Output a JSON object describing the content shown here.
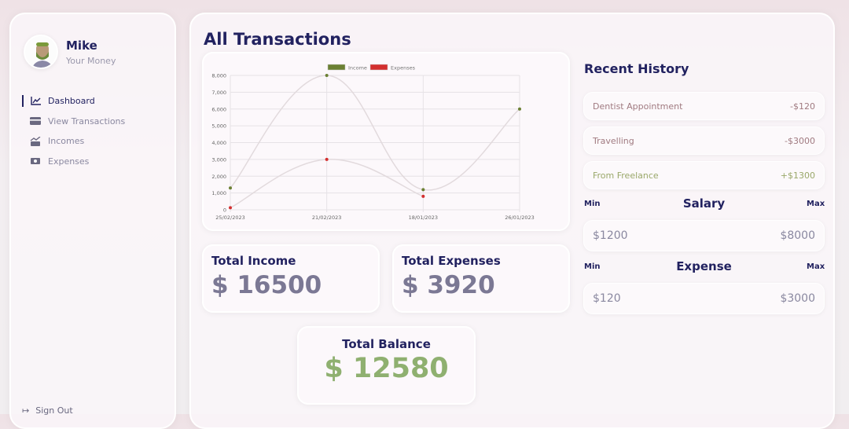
{
  "user": {
    "name": "Mike",
    "subtitle": "Your Money"
  },
  "nav": [
    {
      "label": "Dashboard",
      "icon": "chart-line-icon",
      "active": true
    },
    {
      "label": "View Transactions",
      "icon": "credit-card-icon"
    },
    {
      "label": "Incomes",
      "icon": "money-bill-trend-up-icon"
    },
    {
      "label": "Expenses",
      "icon": "money-bill-transfer-icon"
    }
  ],
  "signout": "Sign Out",
  "page_title": "All Transactions",
  "chart_data": {
    "type": "line",
    "categories": [
      "25/02/2023",
      "21/02/2023",
      "18/01/2023",
      "26/01/2023"
    ],
    "series": [
      {
        "name": "Income",
        "values": [
          1300,
          8000,
          1200,
          6000
        ],
        "color": "#6b8033"
      },
      {
        "name": "Expenses",
        "values": [
          120,
          3000,
          800,
          null
        ],
        "color": "#d32f2f"
      }
    ],
    "ylim": [
      0,
      8000
    ],
    "yticks": [
      "0",
      "1,000",
      "2,000",
      "3,000",
      "4,000",
      "5,000",
      "6,000",
      "7,000",
      "8,000"
    ],
    "grid": true,
    "legend": "top"
  },
  "stats": {
    "income_label": "Total Income",
    "income": "$ 16500",
    "expense_label": "Total Expenses",
    "expense": "$ 3920",
    "balance_label": "Total Balance",
    "balance": "$ 12580",
    "balance_color": "#8fb070"
  },
  "recent": {
    "title": "Recent History",
    "items": [
      {
        "name": "Dentist Appointment",
        "amount": "-$120",
        "color": "#a07a80"
      },
      {
        "name": "Travelling",
        "amount": "-$3000",
        "color": "#a07a80"
      },
      {
        "name": "From Freelance",
        "amount": "+$1300",
        "color": "#9aa86a"
      }
    ]
  },
  "salary": {
    "title": "Salary",
    "min_label": "Min",
    "max_label": "Max",
    "min": "$1200",
    "max": "$8000"
  },
  "expense": {
    "title": "Expense",
    "min_label": "Min",
    "max_label": "Max",
    "min": "$120",
    "max": "$3000"
  }
}
